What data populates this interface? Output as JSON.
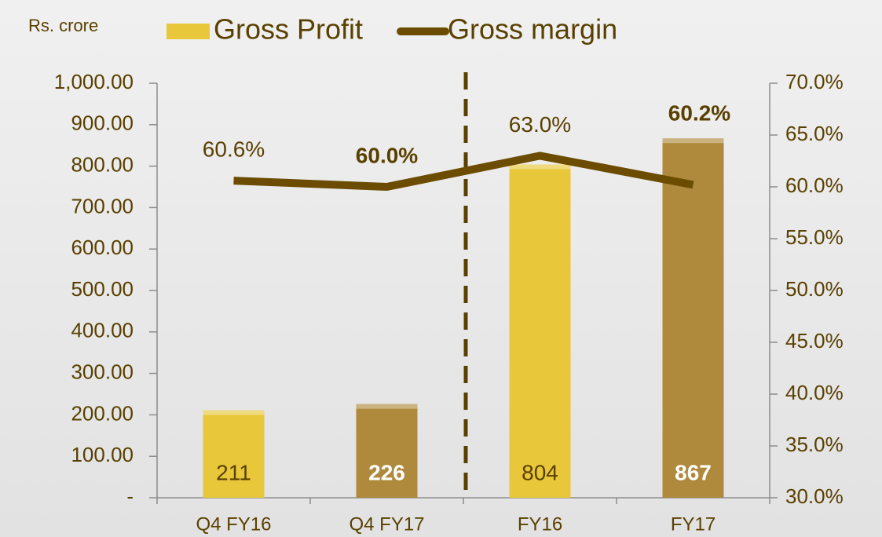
{
  "chart_data": {
    "type": "bar",
    "y_label": "Rs. crore",
    "categories": [
      "Q4 FY16",
      "Q4 FY17",
      "FY16",
      "FY17"
    ],
    "series": [
      {
        "name": "Gross Profit",
        "type": "bar",
        "color": "#e8c73a",
        "colors": [
          "#e8c73a",
          "#b08a3c",
          "#e8c73a",
          "#b08a3c"
        ],
        "values": [
          211,
          226,
          804,
          867
        ],
        "label_bold": [
          false,
          true,
          false,
          true
        ],
        "label_colors": [
          "#5a4000",
          "#ffffff",
          "#5a4000",
          "#ffffff"
        ]
      },
      {
        "name": "Gross margin",
        "type": "line",
        "axis": "y2",
        "color": "#6b4c00",
        "values": [
          60.6,
          60.0,
          63.0,
          60.2
        ],
        "value_labels": [
          "60.6%",
          "60.0%",
          "63.0%",
          "60.2%"
        ],
        "label_bold": [
          false,
          true,
          false,
          true
        ]
      }
    ],
    "ylim": [
      0,
      1000
    ],
    "yticks": [
      {
        "value": 0,
        "label": "-"
      },
      {
        "value": 100,
        "label": "100.00"
      },
      {
        "value": 200,
        "label": "200.00"
      },
      {
        "value": 300,
        "label": "300.00"
      },
      {
        "value": 400,
        "label": "400.00"
      },
      {
        "value": 500,
        "label": "500.00"
      },
      {
        "value": 600,
        "label": "600.00"
      },
      {
        "value": 700,
        "label": "700.00"
      },
      {
        "value": 800,
        "label": "800.00"
      },
      {
        "value": 900,
        "label": "900.00"
      },
      {
        "value": 1000,
        "label": "1,000.00"
      }
    ],
    "y2lim": [
      30,
      70
    ],
    "y2ticks": [
      {
        "value": 30,
        "label": "30.0%"
      },
      {
        "value": 35,
        "label": "35.0%"
      },
      {
        "value": 40,
        "label": "40.0%"
      },
      {
        "value": 45,
        "label": "45.0%"
      },
      {
        "value": 50,
        "label": "50.0%"
      },
      {
        "value": 55,
        "label": "55.0%"
      },
      {
        "value": 60,
        "label": "60.0%"
      },
      {
        "value": 65,
        "label": "65.0%"
      },
      {
        "value": 70,
        "label": "70.0%"
      }
    ],
    "legend": "top"
  }
}
